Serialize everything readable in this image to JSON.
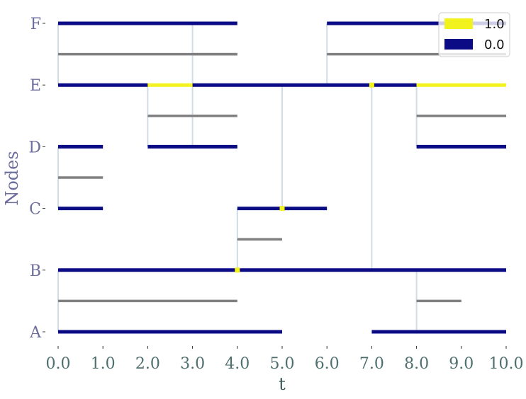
{
  "chart_data": {
    "type": "timeline",
    "xlabel": "t",
    "ylabel": "Nodes",
    "xlim": [
      0,
      10
    ],
    "x_ticks": [
      "0.0",
      "1.0",
      "2.0",
      "3.0",
      "4.0",
      "5.0",
      "6.0",
      "7.0",
      "8.0",
      "9.0",
      "10.0"
    ],
    "nodes": [
      "A",
      "B",
      "C",
      "D",
      "E",
      "F"
    ],
    "grid": false,
    "legend": {
      "placement": "top-right",
      "entries": [
        {
          "label": "1.0",
          "color": "#f2f21f"
        },
        {
          "label": "0.0",
          "color": "#0b0b85"
        }
      ]
    },
    "colors": {
      "state_0": "#0b0b85",
      "state_1": "#f2f21f",
      "edge_interval": "#808080",
      "interaction": "#cfdde8",
      "tick_label": "#6e6e9e",
      "x_tick_label": "#4f6f6f",
      "axis_title_x": "#3a5a5a",
      "axis_title_y": "#6e6e9e"
    },
    "node_intervals": [
      {
        "node": "A",
        "start": 0,
        "end": 5,
        "state": 0
      },
      {
        "node": "A",
        "start": 7,
        "end": 10,
        "state": 0
      },
      {
        "node": "B",
        "start": 0,
        "end": 10,
        "state": 0
      },
      {
        "node": "C",
        "start": 4,
        "end": 6,
        "state": 0
      },
      {
        "node": "C",
        "start": 0,
        "end": 1,
        "state": 0
      },
      {
        "node": "D",
        "start": 0,
        "end": 1,
        "state": 0
      },
      {
        "node": "D",
        "start": 2,
        "end": 4,
        "state": 0
      },
      {
        "node": "D",
        "start": 8,
        "end": 10,
        "state": 0
      },
      {
        "node": "E",
        "start": 0,
        "end": 2,
        "state": 0
      },
      {
        "node": "E",
        "start": 2,
        "end": 3,
        "state": 1
      },
      {
        "node": "E",
        "start": 3,
        "end": 8,
        "state": 0
      },
      {
        "node": "E",
        "start": 8,
        "end": 10,
        "state": 1
      },
      {
        "node": "F",
        "start": 0,
        "end": 4,
        "state": 0
      },
      {
        "node": "F",
        "start": 6,
        "end": 10,
        "state": 0
      }
    ],
    "edge_intervals": [
      {
        "between": [
          "A",
          "B"
        ],
        "start": 0,
        "end": 4
      },
      {
        "between": [
          "A",
          "B"
        ],
        "start": 8,
        "end": 9
      },
      {
        "between": [
          "B",
          "C"
        ],
        "start": 4,
        "end": 5
      },
      {
        "between": [
          "C",
          "D"
        ],
        "start": 0,
        "end": 1
      },
      {
        "between": [
          "D",
          "E"
        ],
        "start": 2,
        "end": 4
      },
      {
        "between": [
          "D",
          "E"
        ],
        "start": 8,
        "end": 10
      },
      {
        "between": [
          "E",
          "F"
        ],
        "start": 3,
        "end": 4
      },
      {
        "between": [
          "E",
          "F"
        ],
        "start": 0,
        "end": 4
      },
      {
        "between": [
          "E",
          "F"
        ],
        "start": 6,
        "end": 10
      }
    ],
    "interactions": [
      {
        "t": 0,
        "from": "A",
        "to": "B"
      },
      {
        "t": 0,
        "from": "C",
        "to": "D"
      },
      {
        "t": 0,
        "from": "E",
        "to": "F"
      },
      {
        "t": 2,
        "from": "D",
        "to": "E"
      },
      {
        "t": 3,
        "from": "D",
        "to": "F"
      },
      {
        "t": 4,
        "from": "B",
        "to": "C"
      },
      {
        "t": 5,
        "from": "C",
        "to": "E"
      },
      {
        "t": 6,
        "from": "E",
        "to": "F"
      },
      {
        "t": 7,
        "from": "B",
        "to": "E"
      },
      {
        "t": 8,
        "from": "A",
        "to": "B"
      },
      {
        "t": 8,
        "from": "D",
        "to": "E"
      }
    ],
    "events": [
      {
        "node": "B",
        "t": 4,
        "state": 1
      },
      {
        "node": "C",
        "t": 5,
        "state": 1
      },
      {
        "node": "E",
        "t": 7,
        "state": 1
      }
    ]
  }
}
